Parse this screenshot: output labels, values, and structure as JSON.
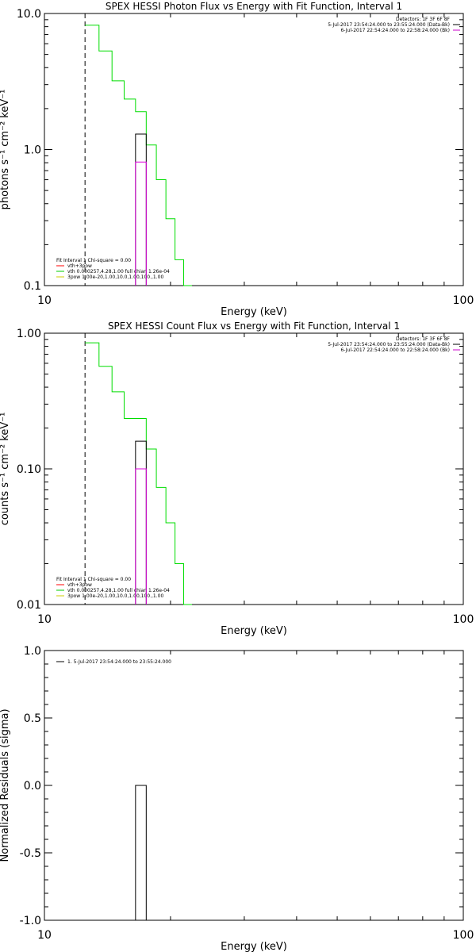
{
  "chart_data": [
    {
      "type": "line",
      "title": "SPEX HESSI Photon Flux vs Energy with Fit Function, Interval 1",
      "xlabel": "Energy (keV)",
      "ylabel": "photons s⁻¹ cm⁻² keV⁻¹",
      "xscale": "log",
      "yscale": "log",
      "xlim": [
        10,
        100
      ],
      "ylim": [
        0.1,
        10.0
      ],
      "x_tick_labels": [
        "10",
        "100"
      ],
      "y_tick_labels": [
        "10.0",
        "1.0",
        "0.1"
      ],
      "y_tick_values": [
        10.0,
        1.0,
        0.1
      ],
      "header_lines": [
        "Detectors: 1F 3F 6F 8F",
        "5-Jul-2017 23:54:24.000 to 23:55:24.000 (Data-Bk)",
        "6-Jul-2017 22:54:24.000 to 22:58:24.000 (Bk)"
      ],
      "header_colors": [
        "",
        "#000000",
        "#cc00cc"
      ],
      "fit_header": "Fit Interval  1    Chi-square = 0.00",
      "legend": [
        {
          "label": "vth+3pow",
          "color": "#ff0000"
        },
        {
          "label": "vth 0.000257,4.28,1.00   full chian 1.26e-04",
          "color": "#00cc00"
        },
        {
          "label": "3pow 1.00e-20,1.00,10.0,1.00,100.,1.00",
          "color": "#cccc00"
        }
      ],
      "vline_x": 12.5,
      "series": [
        {
          "color": "#00dd00",
          "bins": [
            [
              12.5,
              13.5,
              8.2
            ],
            [
              13.5,
              14.5,
              5.3
            ],
            [
              14.5,
              15.5,
              3.2
            ],
            [
              15.5,
              16.5,
              2.35
            ],
            [
              16.5,
              17.5,
              1.9
            ],
            [
              17.5,
              18.5,
              1.08
            ],
            [
              18.5,
              19.5,
              0.6
            ],
            [
              19.5,
              20.5,
              0.31
            ],
            [
              20.5,
              21.5,
              0.155
            ],
            [
              21.5,
              22.5,
              0.095
            ]
          ]
        },
        {
          "color": "#000000",
          "bins": [
            [
              16.5,
              17.5,
              1.3
            ]
          ]
        },
        {
          "color": "#dd00dd",
          "bins": [
            [
              16.5,
              17.5,
              0.81
            ]
          ]
        }
      ]
    },
    {
      "type": "line",
      "title": "SPEX HESSI Count Flux vs Energy with Fit Function, Interval 1",
      "xlabel": "Energy (keV)",
      "ylabel": "counts s⁻¹ cm⁻² keV⁻¹",
      "xscale": "log",
      "yscale": "log",
      "xlim": [
        10,
        100
      ],
      "ylim": [
        0.01,
        1.0
      ],
      "x_tick_labels": [
        "10",
        "100"
      ],
      "y_tick_labels": [
        "1.00",
        "0.10",
        "0.01"
      ],
      "y_tick_values": [
        1.0,
        0.1,
        0.01
      ],
      "header_lines": [
        "Detectors: 1F 3F 6F 8F",
        "5-Jul-2017 23:54:24.000 to 23:55:24.000 (Data-Bk)",
        "6-Jul-2017 22:54:24.000 to 22:58:24.000 (Bk)"
      ],
      "header_colors": [
        "",
        "#000000",
        "#cc00cc"
      ],
      "fit_header": "Fit Interval  1    Chi-square = 0.00",
      "legend": [
        {
          "label": "vth+3pow",
          "color": "#ff0000"
        },
        {
          "label": "vth 0.000257,4.28,1.00   full chian 1.26e-04",
          "color": "#00cc00"
        },
        {
          "label": "3pow 1.00e-20,1.00,10.0,1.00,100.,1.00",
          "color": "#cccc00"
        }
      ],
      "vline_x": 12.5,
      "series": [
        {
          "color": "#00dd00",
          "bins": [
            [
              12.5,
              13.5,
              0.85
            ],
            [
              13.5,
              14.5,
              0.57
            ],
            [
              14.5,
              15.5,
              0.37
            ],
            [
              15.5,
              16.5,
              0.235
            ],
            [
              16.5,
              17.5,
              0.235
            ],
            [
              17.5,
              18.5,
              0.14
            ],
            [
              18.5,
              19.5,
              0.073
            ],
            [
              19.5,
              20.5,
              0.04
            ],
            [
              20.5,
              21.5,
              0.02
            ],
            [
              21.5,
              22.5,
              0.01
            ]
          ]
        },
        {
          "color": "#000000",
          "bins": [
            [
              16.5,
              17.5,
              0.16
            ]
          ]
        },
        {
          "color": "#dd00dd",
          "bins": [
            [
              16.5,
              17.5,
              0.1
            ]
          ]
        }
      ]
    },
    {
      "type": "line",
      "title": "",
      "xlabel": "Energy (keV)",
      "ylabel": "Normalized Residuals (sigma)",
      "xscale": "log",
      "yscale": "linear",
      "xlim": [
        10,
        100
      ],
      "ylim": [
        -1.0,
        1.0
      ],
      "x_tick_labels": [
        "10",
        "100"
      ],
      "y_tick_labels": [
        "1.0",
        "0.5",
        "0.0",
        "-0.5",
        "-1.0"
      ],
      "y_tick_values": [
        1.0,
        0.5,
        0.0,
        -0.5,
        -1.0
      ],
      "header_lines": [],
      "header_colors": [],
      "fit_header": "",
      "legend": [
        {
          "label": "1.  5-Jul-2017 23:54:24.000 to 23:55:24.000",
          "color": "#000000"
        }
      ],
      "series": [
        {
          "color": "#000000",
          "bins": [
            [
              16.5,
              17.5,
              0.0
            ]
          ]
        }
      ]
    }
  ]
}
